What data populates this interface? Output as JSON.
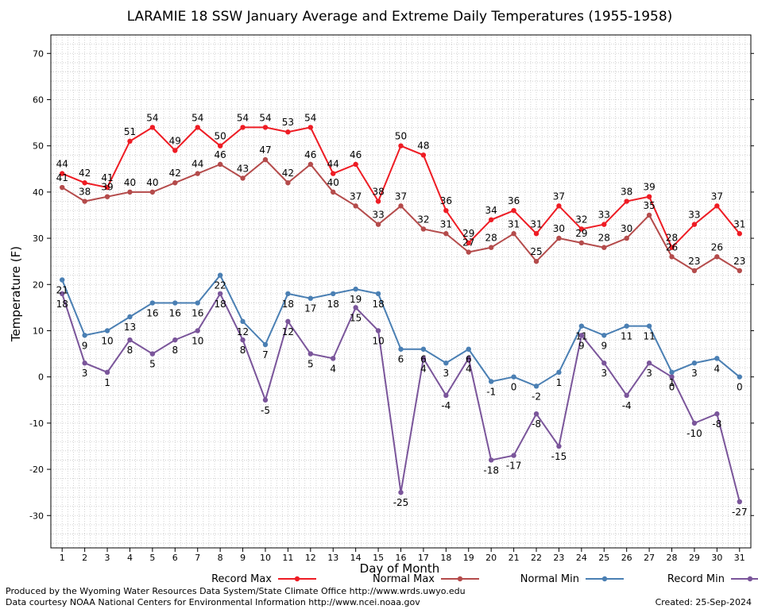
{
  "chart_data": {
    "type": "line",
    "title": "LARAMIE 18 SSW January Average and Extreme Daily Temperatures (1955-1958)",
    "xlabel": "Day of Month",
    "ylabel": "Temperature (F)",
    "ylim": [
      -37,
      74
    ],
    "yticks": [
      -30,
      -20,
      -10,
      0,
      10,
      20,
      30,
      40,
      50,
      60,
      70
    ],
    "x": [
      1,
      2,
      3,
      4,
      5,
      6,
      7,
      8,
      9,
      10,
      11,
      12,
      13,
      14,
      15,
      16,
      17,
      18,
      19,
      20,
      21,
      22,
      23,
      24,
      25,
      26,
      27,
      28,
      29,
      30,
      31
    ],
    "grid": true,
    "legend_position": "bottom",
    "series": [
      {
        "name": "Record Max",
        "color": "#ee1c24",
        "label_pos": "above",
        "values": [
          44,
          42,
          41,
          51,
          54,
          49,
          54,
          50,
          54,
          54,
          53,
          54,
          44,
          46,
          38,
          50,
          48,
          36,
          29,
          34,
          36,
          31,
          37,
          32,
          33,
          38,
          39,
          28,
          33,
          37,
          31
        ]
      },
      {
        "name": "Normal Max",
        "color": "#b44b4b",
        "label_pos": "above",
        "values": [
          41,
          38,
          39,
          40,
          40,
          42,
          44,
          46,
          43,
          47,
          42,
          46,
          40,
          37,
          33,
          37,
          32,
          31,
          27,
          28,
          31,
          25,
          30,
          29,
          28,
          30,
          35,
          26,
          23,
          26,
          23
        ]
      },
      {
        "name": "Normal Min",
        "color": "#4a7fb3",
        "label_pos": "below",
        "values": [
          21,
          9,
          10,
          13,
          16,
          16,
          16,
          22,
          12,
          7,
          18,
          17,
          18,
          19,
          18,
          6,
          6,
          3,
          6,
          -1,
          0,
          -2,
          1,
          11,
          9,
          11,
          11,
          1,
          3,
          4,
          0
        ]
      },
      {
        "name": "Record Min",
        "color": "#7a559a",
        "label_pos": "below",
        "values": [
          18,
          3,
          1,
          8,
          5,
          8,
          10,
          18,
          8,
          -5,
          12,
          5,
          4,
          15,
          10,
          -25,
          4,
          -4,
          4,
          -18,
          -17,
          -8,
          -15,
          9,
          3,
          -4,
          3,
          0,
          -10,
          -8,
          -27
        ]
      }
    ]
  },
  "footer": {
    "credit_line_1": "Produced by the Wyoming Water Resources Data System/State Climate Office http://www.wrds.uwyo.edu",
    "credit_line_2": "Data courtesy NOAA National Centers for Environmental Information http://www.ncei.noaa.gov",
    "created": "Created:  25-Sep-2024"
  }
}
